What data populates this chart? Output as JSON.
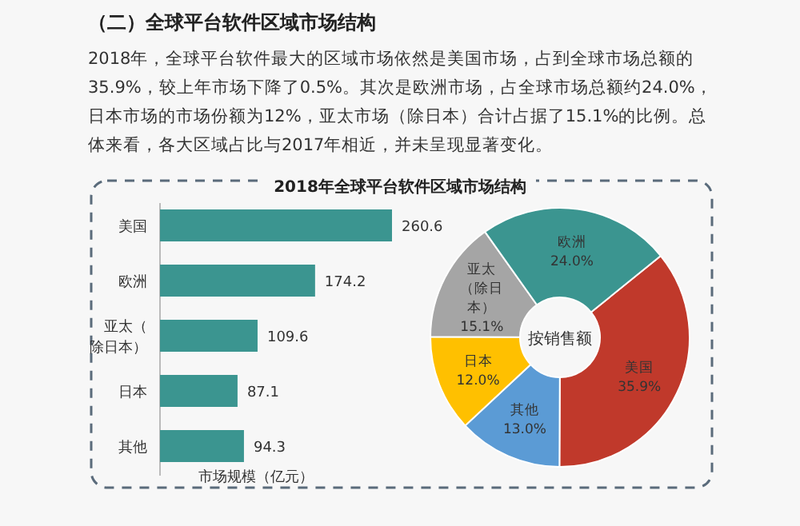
{
  "chart_data": [
    {
      "type": "other",
      "title": "（二）全球平台软件区域市场结构",
      "annotations": [
        "2018年，全球平台软件最大的区域市场依然是美国市场，占到全球市场总额的35.9%，较上年市场下降了0.5%。其次是欧洲市场，占全球市场总额约24.0%，日本市场的市场份额为12%，亚太市场（除日本）合计占据了15.1%的比例。总体来看，各大区域占比与2017年相近，并未呈现显著变化。"
      ]
    },
    {
      "type": "bar",
      "orientation": "horizontal",
      "title": "2018年全球平台软件区域市场结构",
      "xlabel": "市场规模（亿元）",
      "categories": [
        "美国",
        "欧洲",
        "亚太（除日本）",
        "日本",
        "其他"
      ],
      "values": [
        260.6,
        174.2,
        109.6,
        87.1,
        94.3
      ],
      "color": "#3b9590",
      "data_labels": true
    },
    {
      "type": "donut",
      "categories": [
        "美国",
        "其他",
        "日本",
        "亚太（除日本）",
        "欧洲"
      ],
      "values": [
        35.9,
        13.0,
        12.0,
        15.1,
        24.0
      ],
      "colors": [
        "#c0392b",
        "#5b9bd5",
        "#ffc000",
        "#a5a5a5",
        "#3b9590"
      ],
      "value_labels": [
        "35.9%",
        "13.0%",
        "12.0%",
        "15.1%",
        "24.0%"
      ],
      "annotations": [
        "按销售额"
      ]
    }
  ]
}
